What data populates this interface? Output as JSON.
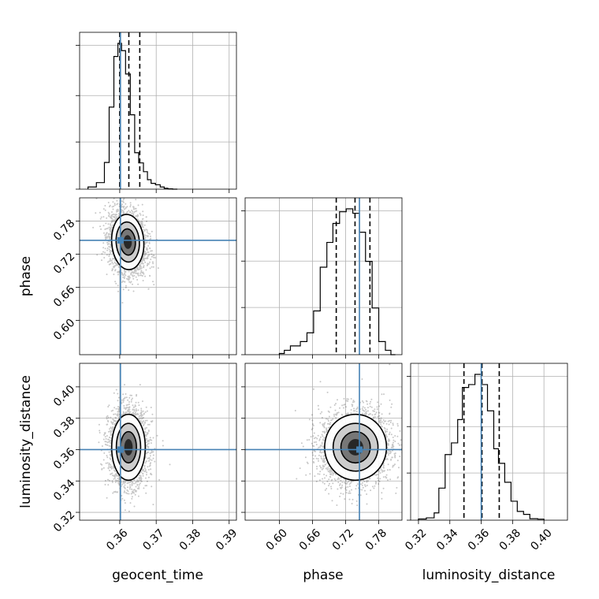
{
  "chart_data": {
    "type": "corner",
    "parameters": [
      "geocent_time",
      "phase",
      "luminosity_distance"
    ],
    "axis_labels": {
      "geocent_time": "geocent_time",
      "phase": "phase",
      "luminosity_distance": "luminosity_distance"
    },
    "ranges": {
      "geocent_time": [
        0.349,
        0.392
      ],
      "phase": [
        0.538,
        0.822
      ],
      "luminosity_distance": [
        0.315,
        0.415
      ]
    },
    "ticks": {
      "geocent_time": [
        "0.36",
        "0.37",
        "0.38",
        "0.39"
      ],
      "phase": [
        "0.60",
        "0.66",
        "0.72",
        "0.78"
      ],
      "luminosity_distance": [
        "0.32",
        "0.34",
        "0.36",
        "0.38",
        "0.40"
      ]
    },
    "truth_color": "#4682b4",
    "truths": {
      "geocent_time": 0.3602,
      "phase": 0.745,
      "luminosity_distance": 0.36
    },
    "quantiles": {
      "geocent_time": [
        0.36,
        0.3625,
        0.3655
      ],
      "phase": [
        0.703,
        0.737,
        0.764
      ],
      "luminosity_distance": [
        0.349,
        0.3605,
        0.3715
      ]
    },
    "histograms": {
      "geocent_time": {
        "edges": [
          0.3513,
          0.3536,
          0.3558,
          0.3571,
          0.3584,
          0.3595,
          0.3605,
          0.3616,
          0.3629,
          0.3641,
          0.3652,
          0.3665,
          0.3676,
          0.3686,
          0.3698,
          0.3711,
          0.3722,
          0.3732,
          0.3745,
          0.3758
        ],
        "values": [
          0.015,
          0.045,
          0.183,
          0.563,
          0.91,
          1.0,
          0.95,
          0.79,
          0.51,
          0.25,
          0.18,
          0.12,
          0.065,
          0.04,
          0.03,
          0.015,
          0.006,
          0.002,
          0.0
        ]
      },
      "phase": {
        "edges": [
          0.6,
          0.609,
          0.62,
          0.638,
          0.65,
          0.662,
          0.674,
          0.686,
          0.697,
          0.709,
          0.721,
          0.733,
          0.745,
          0.756,
          0.768,
          0.78,
          0.792,
          0.802,
          0.81
        ],
        "values": [
          0.008,
          0.03,
          0.06,
          0.09,
          0.15,
          0.3,
          0.6,
          0.77,
          0.9,
          0.98,
          1.0,
          0.97,
          0.84,
          0.64,
          0.32,
          0.09,
          0.03,
          0.0
        ]
      },
      "luminosity_distance": {
        "edges": [
          0.32,
          0.325,
          0.33,
          0.333,
          0.337,
          0.341,
          0.345,
          0.348,
          0.352,
          0.356,
          0.36,
          0.364,
          0.368,
          0.371,
          0.375,
          0.379,
          0.383,
          0.387,
          0.391,
          0.396,
          0.4
        ],
        "values": [
          0.008,
          0.016,
          0.05,
          0.22,
          0.45,
          0.53,
          0.69,
          0.91,
          0.93,
          1.0,
          0.93,
          0.75,
          0.49,
          0.39,
          0.26,
          0.13,
          0.06,
          0.04,
          0.01,
          0.007
        ]
      }
    },
    "pairs": [
      {
        "x": "geocent_time",
        "y": "phase",
        "center": [
          0.3622,
          0.742
        ],
        "sigma": [
          0.0022,
          0.025
        ],
        "rho": -0.2,
        "contour_levels": [
          0.92,
          0.62,
          0.3
        ]
      },
      {
        "x": "geocent_time",
        "y": "luminosity_distance",
        "center": [
          0.3624,
          0.3615
        ],
        "sigma": [
          0.0023,
          0.0105
        ],
        "rho": 0.0,
        "contour_levels": [
          0.92,
          0.62,
          0.3
        ]
      },
      {
        "x": "phase",
        "y": "luminosity_distance",
        "center": [
          0.738,
          0.3615
        ],
        "sigma": [
          0.028,
          0.0105
        ],
        "rho": 0.05,
        "contour_levels": [
          0.92,
          0.62,
          0.3
        ]
      }
    ],
    "grid": true
  }
}
